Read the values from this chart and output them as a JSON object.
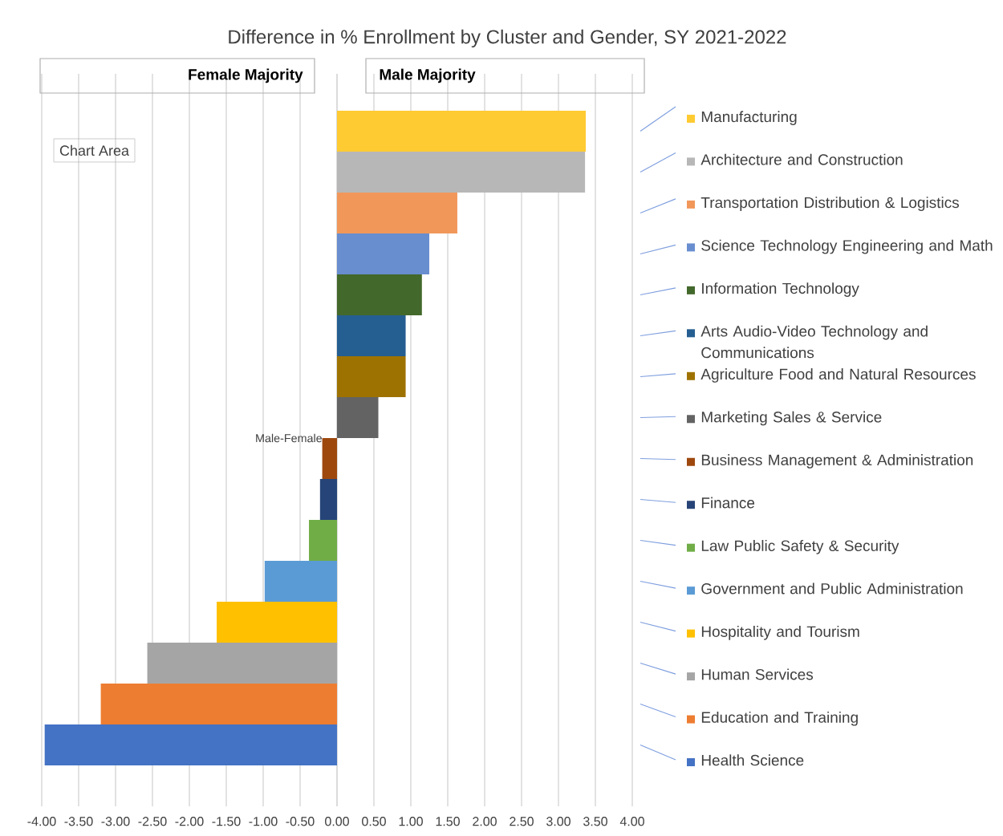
{
  "chart_data": {
    "type": "bar",
    "orientation": "horizontal",
    "title": "Difference in % Enrollment by Cluster and Gender, SY 2021-2022",
    "categories": [
      "Manufacturing",
      "Architecture and Construction",
      "Transportation Distribution & Logistics",
      "Science Technology Engineering and Math",
      "Information Technology",
      "Arts Audio-Video Technology and Communications",
      "Agriculture Food and Natural Resources",
      "Marketing Sales & Service",
      "Business Management & Administration",
      "Finance",
      "Law Public Safety & Security",
      "Government and Public Administration",
      "Hospitality and Tourism",
      "Human Services",
      "Education and Training",
      "Health Science"
    ],
    "values": [
      3.37,
      3.36,
      1.63,
      1.25,
      1.15,
      0.93,
      0.93,
      0.56,
      -0.2,
      -0.23,
      -0.38,
      -0.98,
      -1.63,
      -2.57,
      -3.2,
      -3.96
    ],
    "colors": [
      "#ffcb33",
      "#b7b7b7",
      "#f1975a",
      "#698ed0",
      "#43682b",
      "#255e91",
      "#9e7200",
      "#636363",
      "#9e480e",
      "#264478",
      "#70ad47",
      "#5b9bd5",
      "#ffc000",
      "#a5a5a5",
      "#ed7d31",
      "#4472c4"
    ],
    "xlim": [
      -4,
      4
    ],
    "xticks": [
      {
        "value": -4,
        "label": "-4.00"
      },
      {
        "value": -3.5,
        "label": "-3.50"
      },
      {
        "value": -3,
        "label": "-3.00"
      },
      {
        "value": -2.5,
        "label": "-2.50"
      },
      {
        "value": -2,
        "label": "-2.00"
      },
      {
        "value": -1.5,
        "label": "-1.50"
      },
      {
        "value": -1,
        "label": "-1.00"
      },
      {
        "value": -0.5,
        "label": "-0.50"
      },
      {
        "value": 0,
        "label": "0.00"
      },
      {
        "value": 0.5,
        "label": "0.50"
      },
      {
        "value": 1,
        "label": "1.00"
      },
      {
        "value": 1.5,
        "label": "1.50"
      },
      {
        "value": 2,
        "label": "2.00"
      },
      {
        "value": 2.5,
        "label": "2.50"
      },
      {
        "value": 3,
        "label": "3.00"
      },
      {
        "value": 3.5,
        "label": "3.50"
      },
      {
        "value": 4,
        "label": "4.00"
      }
    ],
    "grid": "x",
    "annotations": [
      "Female Majority",
      "Male Majority",
      "Chart Area",
      "Male-Female"
    ]
  }
}
